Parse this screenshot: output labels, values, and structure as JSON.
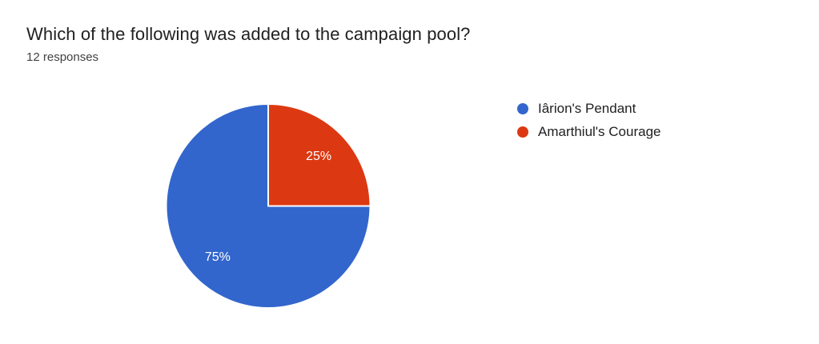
{
  "header": {
    "title": "Which of the following was added to the campaign pool?",
    "responses_label": "12 responses"
  },
  "chart_data": {
    "type": "pie",
    "title": "Which of the following was added to the campaign pool?",
    "subtitle": "12 responses",
    "total_responses": 12,
    "direction": "counterclockwise",
    "start_angle_deg": 0,
    "legend_position": "right",
    "slice_border_color": "#ffffff",
    "label_text_color": "#ffffff",
    "slices": [
      {
        "label": "Iârion's Pendant",
        "percent": 75,
        "percent_label": "75%",
        "color": "#3366cc"
      },
      {
        "label": "Amarthiul's Courage",
        "percent": 25,
        "percent_label": "25%",
        "color": "#dc3912"
      }
    ]
  },
  "legend": {
    "items": [
      {
        "label": "Iârion's Pendant",
        "color": "#3366cc"
      },
      {
        "label": "Amarthiul's Courage",
        "color": "#dc3912"
      }
    ]
  },
  "colors": {
    "background": "#ffffff",
    "title_text": "#212121",
    "subtitle_text": "#424242",
    "legend_text": "#212121"
  }
}
